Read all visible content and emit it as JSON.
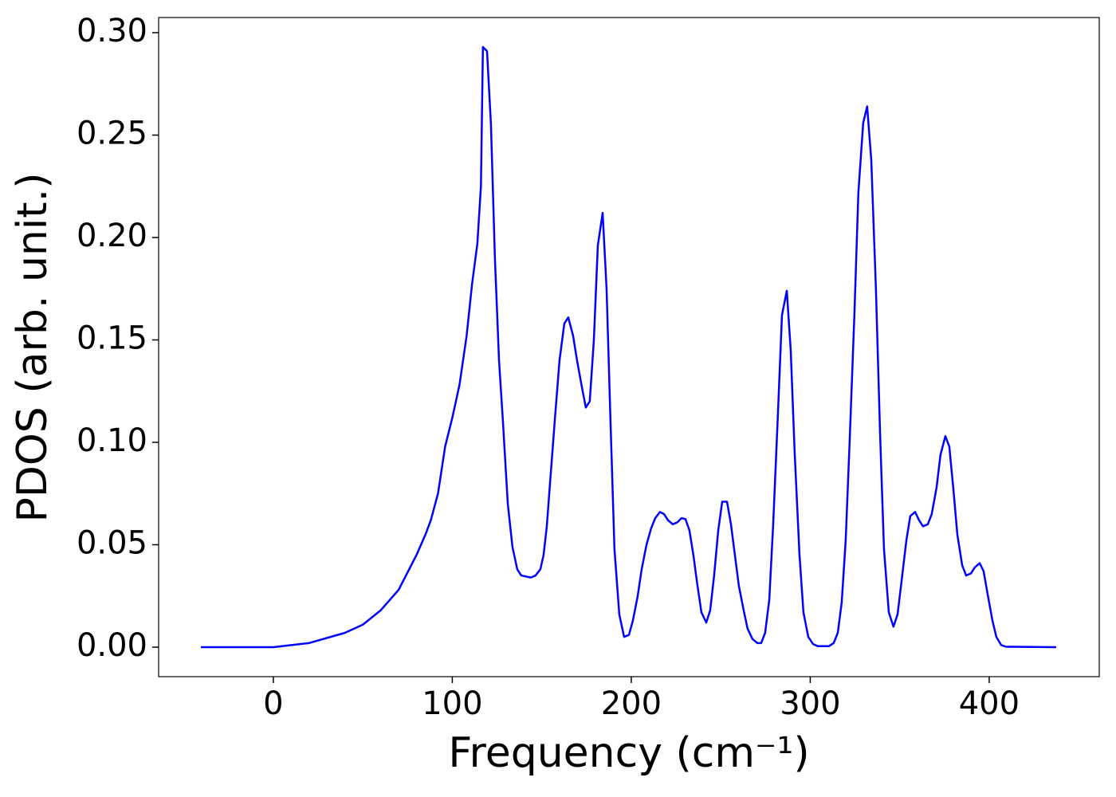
{
  "chart_data": {
    "type": "line",
    "xlabel": "Frequency (cm⁻¹)",
    "ylabel": "PDOS (arb. unit.)",
    "x": [
      -40.5,
      0,
      20,
      40,
      50,
      60,
      70,
      80,
      85,
      88,
      92,
      96,
      100,
      104,
      108,
      111,
      114,
      116,
      117.1,
      119.4,
      121.6,
      123.8,
      126.1,
      128.3,
      131,
      133.6,
      136.3,
      138.5,
      143.9,
      146.5,
      149.2,
      151,
      152.8,
      154.6,
      157.2,
      159.9,
      162.6,
      164.8,
      167.5,
      169.7,
      172.4,
      174.6,
      176.8,
      179.1,
      181.3,
      184,
      186.2,
      188.4,
      190.6,
      193.3,
      196,
      198.7,
      200.9,
      203.6,
      205.8,
      208.5,
      211.1,
      213.4,
      216,
      218.3,
      220.5,
      223.2,
      225.8,
      228.1,
      230.3,
      232.5,
      234.7,
      237,
      239.2,
      241.9,
      244.1,
      246.3,
      248.6,
      250.8,
      253.5,
      255.7,
      257.9,
      260.1,
      262.8,
      265,
      267.7,
      270.4,
      272.6,
      274.8,
      277.1,
      279.3,
      282,
      284.2,
      286.9,
      289.1,
      291.3,
      294,
      296.2,
      298.9,
      301.6,
      304.2,
      310.5,
      313.1,
      315.4,
      317.6,
      319.8,
      322,
      324.7,
      326.9,
      329.6,
      331.8,
      334.1,
      336.7,
      339,
      341.2,
      343.9,
      346.5,
      348.8,
      351,
      353.7,
      355.9,
      358.6,
      360.8,
      363,
      365.7,
      367.9,
      370.6,
      372.8,
      375.5,
      377.7,
      380,
      382.2,
      384.9,
      387.1,
      389.8,
      392,
      394.7,
      396.9,
      399.1,
      401.8,
      404,
      406.7,
      409.4,
      437.4
    ],
    "series": [
      {
        "name": "PDOS",
        "color": "#0000ff",
        "values": [
          0,
          0,
          0.002,
          0.007,
          0.011,
          0.018,
          0.028,
          0.045,
          0.055,
          0.062,
          0.075,
          0.098,
          0.112,
          0.128,
          0.152,
          0.177,
          0.197,
          0.225,
          0.293,
          0.291,
          0.255,
          0.19,
          0.14,
          0.11,
          0.07,
          0.049,
          0.038,
          0.035,
          0.034,
          0.035,
          0.038,
          0.045,
          0.059,
          0.08,
          0.11,
          0.14,
          0.158,
          0.161,
          0.152,
          0.14,
          0.127,
          0.117,
          0.12,
          0.15,
          0.196,
          0.212,
          0.175,
          0.11,
          0.048,
          0.016,
          0.005,
          0.006,
          0.013,
          0.025,
          0.038,
          0.05,
          0.058,
          0.063,
          0.066,
          0.065,
          0.062,
          0.06,
          0.061,
          0.063,
          0.0625,
          0.057,
          0.045,
          0.03,
          0.017,
          0.012,
          0.018,
          0.035,
          0.057,
          0.071,
          0.071,
          0.06,
          0.045,
          0.03,
          0.018,
          0.009,
          0.004,
          0.002,
          0.002,
          0.007,
          0.023,
          0.06,
          0.115,
          0.162,
          0.174,
          0.145,
          0.095,
          0.045,
          0.017,
          0.005,
          0.0015,
          0.0005,
          0.0005,
          0.002,
          0.007,
          0.022,
          0.052,
          0.1,
          0.163,
          0.222,
          0.256,
          0.264,
          0.238,
          0.175,
          0.105,
          0.048,
          0.017,
          0.01,
          0.016,
          0.032,
          0.052,
          0.064,
          0.066,
          0.062,
          0.059,
          0.06,
          0.065,
          0.078,
          0.094,
          0.103,
          0.098,
          0.077,
          0.055,
          0.04,
          0.035,
          0.036,
          0.039,
          0.041,
          0.037,
          0.026,
          0.013,
          0.005,
          0.001,
          0.0002,
          0
        ]
      }
    ],
    "xlim": [
      -64.1,
      461.5
    ],
    "ylim": [
      -0.0144,
      0.3074
    ],
    "xticks": [
      0,
      100,
      200,
      300,
      400
    ],
    "yticks": [
      {
        "value": 0,
        "label": "0.00"
      },
      {
        "value": 0.05,
        "label": "0.05"
      },
      {
        "value": 0.1,
        "label": "0.10"
      },
      {
        "value": 0.15,
        "label": "0.15"
      },
      {
        "value": 0.2,
        "label": "0.20"
      },
      {
        "value": 0.25,
        "label": "0.25"
      },
      {
        "value": 0.3,
        "label": "0.30"
      }
    ],
    "grid": false
  }
}
